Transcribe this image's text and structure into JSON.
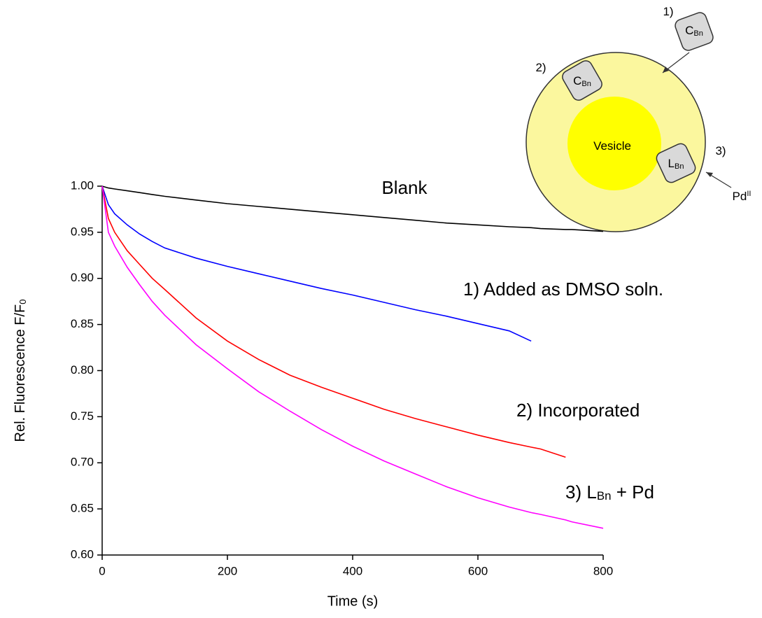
{
  "chart_data": {
    "type": "line",
    "xlabel": "Time (s)",
    "ylabel": [
      "Rel. Fluorescence F/F",
      "0"
    ],
    "x": [
      0,
      10,
      20,
      40,
      60,
      80,
      100,
      150,
      200,
      250,
      300,
      350,
      400,
      450,
      500,
      550,
      600,
      650,
      685,
      700,
      740,
      750,
      800
    ],
    "series": [
      {
        "color": "#000000",
        "values": [
          1.0,
          0.998,
          0.997,
          0.995,
          0.993,
          0.991,
          0.989,
          0.985,
          0.981,
          0.978,
          0.975,
          0.972,
          0.969,
          0.966,
          0.963,
          0.96,
          0.958,
          0.956,
          0.955,
          0.954,
          0.953,
          0.953,
          0.951
        ]
      },
      {
        "color": "#0000ff",
        "values": [
          1.0,
          0.98,
          0.97,
          0.958,
          0.948,
          0.94,
          0.933,
          0.922,
          0.913,
          0.905,
          0.897,
          0.889,
          0.882,
          0.874,
          0.866,
          0.859,
          0.851,
          0.843,
          0.832,
          null,
          null,
          null,
          null
        ]
      },
      {
        "color": "#ff0000",
        "values": [
          1.0,
          0.965,
          0.95,
          0.93,
          0.915,
          0.9,
          0.888,
          0.857,
          0.832,
          0.812,
          0.795,
          0.782,
          0.77,
          0.758,
          0.748,
          0.739,
          0.73,
          0.722,
          0.717,
          0.715,
          0.706,
          null,
          null
        ]
      },
      {
        "color": "#ff00ff",
        "values": [
          1.0,
          0.95,
          0.935,
          0.912,
          0.893,
          0.875,
          0.86,
          0.828,
          0.802,
          0.777,
          0.756,
          0.736,
          0.718,
          0.702,
          0.688,
          0.674,
          0.662,
          0.652,
          0.646,
          0.644,
          0.638,
          0.636,
          0.629
        ]
      }
    ],
    "annotations": [
      [
        "Blank"
      ],
      [
        "1) Added as DMSO soln."
      ],
      [
        "2) Incorporated"
      ],
      [
        "3) L",
        "Bn",
        " + Pd"
      ]
    ],
    "xlim": [
      0,
      800
    ],
    "xticks": [
      0,
      200,
      400,
      600,
      800
    ],
    "ylim": [
      0.6,
      1.0
    ],
    "yticks": [
      {
        "value": 0.6,
        "label": "0.60"
      },
      {
        "value": 0.65,
        "label": "0.65"
      },
      {
        "value": 0.7,
        "label": "0.70"
      },
      {
        "value": 0.75,
        "label": "0.75"
      },
      {
        "value": 0.8,
        "label": "0.80"
      },
      {
        "value": 0.85,
        "label": "0.85"
      },
      {
        "value": 0.9,
        "label": "0.90"
      },
      {
        "value": 0.95,
        "label": "0.95"
      },
      {
        "value": 1.0,
        "label": "1.00"
      }
    ],
    "grid": false
  },
  "inset": {
    "labels": [
      [
        "1)"
      ],
      [
        "C",
        "Bn"
      ],
      [
        "2)"
      ],
      [
        "C",
        "Bn"
      ],
      [
        "Vesicle"
      ],
      [
        "L",
        "Bn"
      ],
      [
        "3)"
      ],
      [
        "Pd",
        "II"
      ]
    ]
  }
}
